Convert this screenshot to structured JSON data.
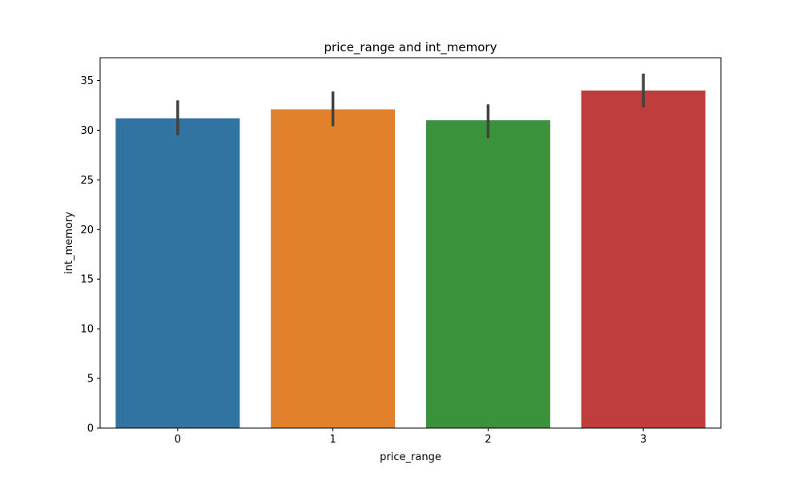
{
  "chart_data": {
    "type": "bar",
    "title": "price_range and int_memory",
    "xlabel": "price_range",
    "ylabel": "int_memory",
    "categories": [
      "0",
      "1",
      "2",
      "3"
    ],
    "values": [
      31.2,
      32.1,
      31.0,
      34.0
    ],
    "error_bars": [
      {
        "low": 29.5,
        "high": 33.0
      },
      {
        "low": 30.4,
        "high": 33.9
      },
      {
        "low": 29.2,
        "high": 32.6
      },
      {
        "low": 32.3,
        "high": 35.7
      }
    ],
    "bar_colors": [
      "#3274a1",
      "#e1812c",
      "#3a923a",
      "#c03d3e"
    ],
    "error_bar_color": "#424242",
    "ylim": [
      0,
      37.3
    ],
    "yticks": [
      0,
      5,
      10,
      15,
      20,
      25,
      30,
      35
    ],
    "grid": false,
    "legend": "none"
  }
}
